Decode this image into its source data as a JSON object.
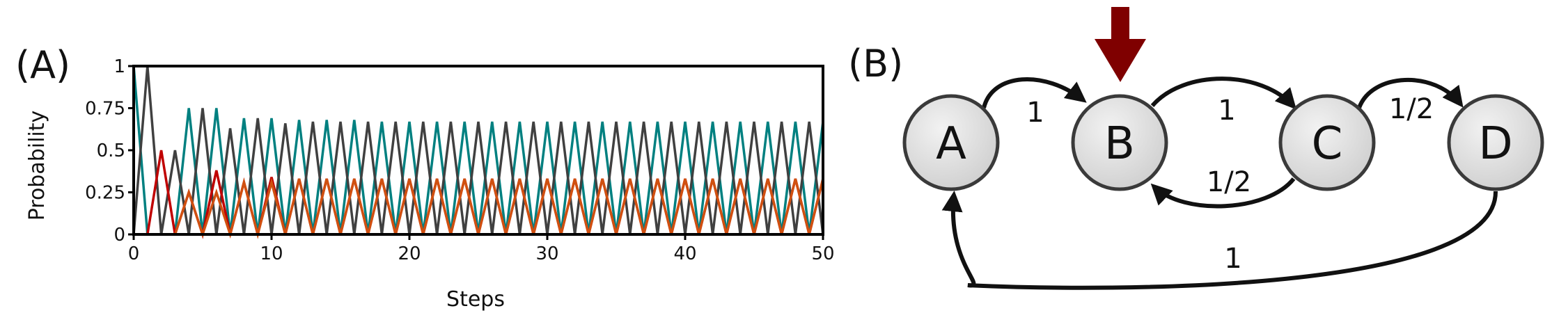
{
  "chart_data": {
    "type": "line",
    "panel_label": "(A)",
    "xlabel": "Steps",
    "ylabel": "Probability",
    "xlim": [
      0,
      50
    ],
    "ylim": [
      0,
      1
    ],
    "xticks": [
      0,
      10,
      20,
      30,
      40,
      50
    ],
    "yticks": [
      0,
      0.25,
      0.5,
      0.75,
      1
    ],
    "ytick_labels": [
      "0",
      "0.25",
      "0.5",
      "0.75",
      "1"
    ],
    "grid": false,
    "legend": "none",
    "x": [
      0,
      1,
      2,
      3,
      4,
      5,
      6,
      7,
      8,
      9,
      10,
      11,
      12,
      13,
      14,
      15,
      16,
      17,
      18,
      19,
      20,
      21,
      22,
      23,
      24,
      25,
      26,
      27,
      28,
      29,
      30,
      31,
      32,
      33,
      34,
      35,
      36,
      37,
      38,
      39,
      40,
      41,
      42,
      43,
      44,
      45,
      46,
      47,
      48,
      49,
      50
    ],
    "series": [
      {
        "color": "#008080",
        "values": [
          1,
          0,
          0,
          0,
          0.75,
          0,
          0.75,
          0,
          0.69,
          0,
          0.69,
          0,
          0.68,
          0,
          0.68,
          0,
          0.68,
          0,
          0.67,
          0,
          0.67,
          0,
          0.67,
          0,
          0.67,
          0,
          0.67,
          0,
          0.67,
          0,
          0.67,
          0,
          0.67,
          0,
          0.67,
          0,
          0.67,
          0,
          0.67,
          0,
          0.67,
          0,
          0.67,
          0,
          0.67,
          0,
          0.67,
          0,
          0.67,
          0,
          0.67
        ]
      },
      {
        "color": "#404040",
        "values": [
          0,
          1,
          0,
          0.5,
          0,
          0.75,
          0,
          0.63,
          0,
          0.69,
          0,
          0.66,
          0,
          0.67,
          0,
          0.67,
          0,
          0.67,
          0,
          0.67,
          0,
          0.67,
          0,
          0.67,
          0,
          0.67,
          0,
          0.67,
          0,
          0.67,
          0,
          0.67,
          0,
          0.67,
          0,
          0.67,
          0,
          0.67,
          0,
          0.67,
          0,
          0.67,
          0,
          0.67,
          0,
          0.67,
          0,
          0.67,
          0,
          0.67,
          0
        ]
      },
      {
        "color": "#c00000",
        "values": [
          0,
          0,
          0.5,
          0,
          0.25,
          0,
          0.38,
          0,
          0.31,
          0,
          0.34,
          0,
          0.33,
          0,
          0.33,
          0,
          0.33,
          0,
          0.33,
          0,
          0.33,
          0,
          0.33,
          0,
          0.33,
          0,
          0.33,
          0,
          0.33,
          0,
          0.33,
          0,
          0.33,
          0,
          0.33,
          0,
          0.33,
          0,
          0.33,
          0,
          0.33,
          0,
          0.33,
          0,
          0.33,
          0,
          0.33,
          0,
          0.33,
          0,
          0.33
        ]
      },
      {
        "color": "#d05010",
        "values": [
          0,
          0,
          0,
          0,
          0.25,
          0,
          0.25,
          0,
          0.31,
          0,
          0.31,
          0,
          0.33,
          0,
          0.33,
          0,
          0.33,
          0,
          0.33,
          0,
          0.33,
          0,
          0.33,
          0,
          0.33,
          0,
          0.33,
          0,
          0.33,
          0,
          0.33,
          0,
          0.33,
          0,
          0.33,
          0,
          0.33,
          0,
          0.33,
          0,
          0.33,
          0,
          0.33,
          0,
          0.33,
          0,
          0.33,
          0,
          0.33,
          0,
          0.33
        ]
      }
    ]
  },
  "diagram": {
    "panel_label": "(B)",
    "nodes": [
      {
        "id": "A",
        "label": "A"
      },
      {
        "id": "B",
        "label": "B"
      },
      {
        "id": "C",
        "label": "C"
      },
      {
        "id": "D",
        "label": "D"
      }
    ],
    "edges": [
      {
        "from": "A",
        "to": "B",
        "label": "1"
      },
      {
        "from": "B",
        "to": "C",
        "label": "1"
      },
      {
        "from": "C",
        "to": "B",
        "label": "1/2"
      },
      {
        "from": "C",
        "to": "D",
        "label": "1/2"
      },
      {
        "from": "D",
        "to": "A",
        "label": "1"
      }
    ],
    "start_marker": "B",
    "colors": {
      "node_fill": "#d9d9d9",
      "node_stroke": "#3a3a3a",
      "edge": "#111111",
      "start_arrow": "#7f0000"
    }
  }
}
